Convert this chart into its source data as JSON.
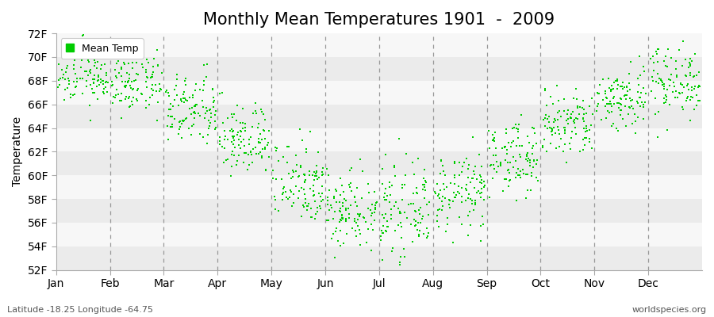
{
  "title": "Monthly Mean Temperatures 1901  -  2009",
  "ylabel": "Temperature",
  "xlabel_months": [
    "Jan",
    "Feb",
    "Mar",
    "Apr",
    "May",
    "Jun",
    "Jul",
    "Aug",
    "Sep",
    "Oct",
    "Nov",
    "Dec"
  ],
  "ylim": [
    52,
    72
  ],
  "yticks": [
    52,
    54,
    56,
    58,
    60,
    62,
    64,
    66,
    68,
    70,
    72
  ],
  "ytick_labels": [
    "52F",
    "54F",
    "56F",
    "58F",
    "60F",
    "62F",
    "64F",
    "66F",
    "68F",
    "70F",
    "72F"
  ],
  "dot_color": "#00cc00",
  "legend_label": "Mean Temp",
  "subtitle_left": "Latitude -18.25 Longitude -64.75",
  "subtitle_right": "worldspecies.org",
  "band_colors": [
    "#ebebeb",
    "#f7f7f7"
  ],
  "title_fontsize": 15,
  "axis_fontsize": 10,
  "tick_fontsize": 10,
  "monthly_means": [
    68.5,
    67.8,
    65.5,
    63.0,
    59.5,
    57.2,
    57.0,
    58.5,
    61.5,
    64.2,
    66.5,
    68.0
  ],
  "monthly_stds": [
    1.3,
    1.3,
    1.5,
    1.5,
    1.8,
    1.7,
    1.8,
    1.6,
    1.5,
    1.5,
    1.4,
    1.5
  ],
  "n_years": 109
}
